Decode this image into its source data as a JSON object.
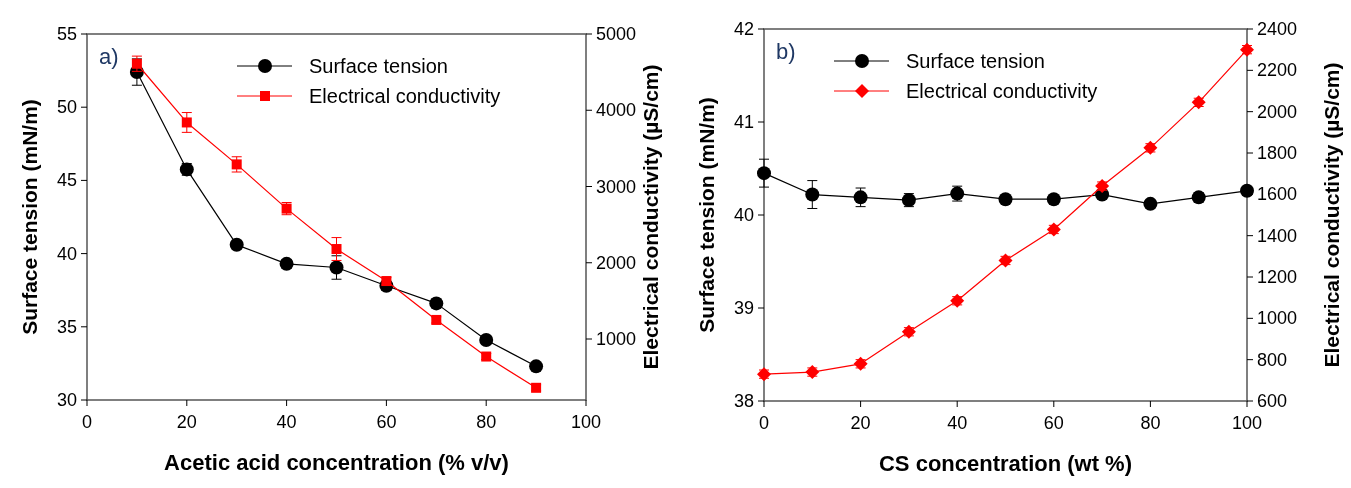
{
  "chart_data": [
    {
      "type": "line",
      "xlabel": "Acetic acid concentration (% v/v)",
      "ylabel": "Surface tension (mN/m)",
      "y2label": "Electrical conductivity (µS/cm)",
      "xlim": [
        0,
        100
      ],
      "xticks": [
        0,
        20,
        40,
        60,
        80,
        100
      ],
      "ylim": [
        30,
        55
      ],
      "yticks": [
        30,
        35,
        40,
        45,
        50,
        55
      ],
      "y2lim": [
        200,
        5000
      ],
      "y2ticks": [
        1000,
        2000,
        3000,
        4000,
        5000
      ],
      "legend": "top right",
      "annotations": [
        "a)"
      ],
      "x": [
        10,
        20,
        30,
        40,
        50,
        60,
        70,
        80,
        90
      ],
      "series": [
        {
          "name": "Surface tension",
          "color": "#000000",
          "marker": "circle",
          "values": [
            52.4,
            45.75,
            40.6,
            39.3,
            39.05,
            37.8,
            36.6,
            34.1,
            32.3
          ],
          "errors": [
            0.9,
            0.4,
            0.25,
            0.3,
            0.8,
            0.3,
            0.3,
            0.1,
            0.2
          ]
        },
        {
          "name": "Electrical conductivity",
          "color": "#ff0000",
          "marker": "square",
          "axis": "y2",
          "values": [
            4610,
            3840,
            3290,
            2710,
            2180,
            1760,
            1250,
            770,
            360
          ],
          "errors": [
            100,
            130,
            100,
            80,
            150,
            50,
            40,
            40,
            40
          ]
        }
      ]
    },
    {
      "type": "line",
      "xlabel": "CS concentration (wt %)",
      "ylabel": "Surface tension (mN/m)",
      "y2label": "Electrical conductivity (µS/cm)",
      "xlim": [
        0,
        100
      ],
      "xticks": [
        0,
        20,
        40,
        60,
        80,
        100
      ],
      "ylim": [
        38,
        42
      ],
      "yticks": [
        38,
        39,
        40,
        41,
        42
      ],
      "y2lim": [
        600,
        2400
      ],
      "y2ticks": [
        600,
        800,
        1000,
        1200,
        1400,
        1600,
        1800,
        2000,
        2200,
        2400
      ],
      "legend": "top left",
      "annotations": [
        "b)"
      ],
      "x": [
        0,
        10,
        20,
        30,
        40,
        50,
        60,
        70,
        80,
        90,
        100
      ],
      "series": [
        {
          "name": "Surface tension",
          "color": "#000000",
          "marker": "circle",
          "values": [
            40.45,
            40.22,
            40.19,
            40.16,
            40.23,
            40.17,
            40.17,
            40.22,
            40.12,
            40.19,
            40.26
          ],
          "errors": [
            0.15,
            0.15,
            0.1,
            0.07,
            0.08,
            0.02,
            0.04,
            0.03,
            0.03,
            0.05,
            0.02
          ]
        },
        {
          "name": "Electrical conductivity",
          "color": "#ff0000",
          "marker": "diamond",
          "axis": "y2",
          "values": [
            730,
            740,
            780,
            935,
            1085,
            1280,
            1430,
            1640,
            1825,
            2045,
            2300
          ],
          "errors": [
            20,
            20,
            20,
            20,
            20,
            20,
            20,
            20,
            20,
            20,
            20
          ]
        }
      ]
    }
  ]
}
